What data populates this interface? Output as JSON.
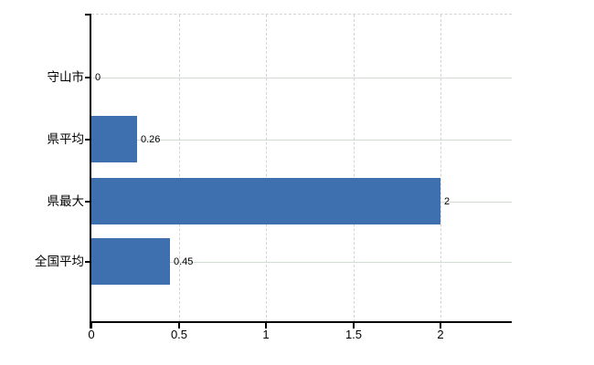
{
  "chart_data": {
    "type": "bar",
    "orientation": "horizontal",
    "title": "",
    "categories": [
      "守山市",
      "県平均",
      "県最大",
      "全国平均"
    ],
    "values": [
      0,
      0.26,
      2,
      0.45
    ],
    "value_labels": [
      "0",
      "0.26",
      "2",
      "0.45"
    ],
    "x_tick_values": [
      0,
      0.5,
      1,
      1.5,
      2
    ],
    "x_tick_labels": [
      "0",
      "0.5",
      "1",
      "1.5",
      "2"
    ],
    "xlim": [
      0,
      2.41
    ],
    "grid": true,
    "legend": false,
    "colors": {
      "bar": "#3e6fae",
      "axis": "#000000",
      "horizontal_gridline": "#d2dcd2",
      "vertical_gridline": "#d8d2d8",
      "background": "#ffffff",
      "text": "#000000"
    }
  }
}
